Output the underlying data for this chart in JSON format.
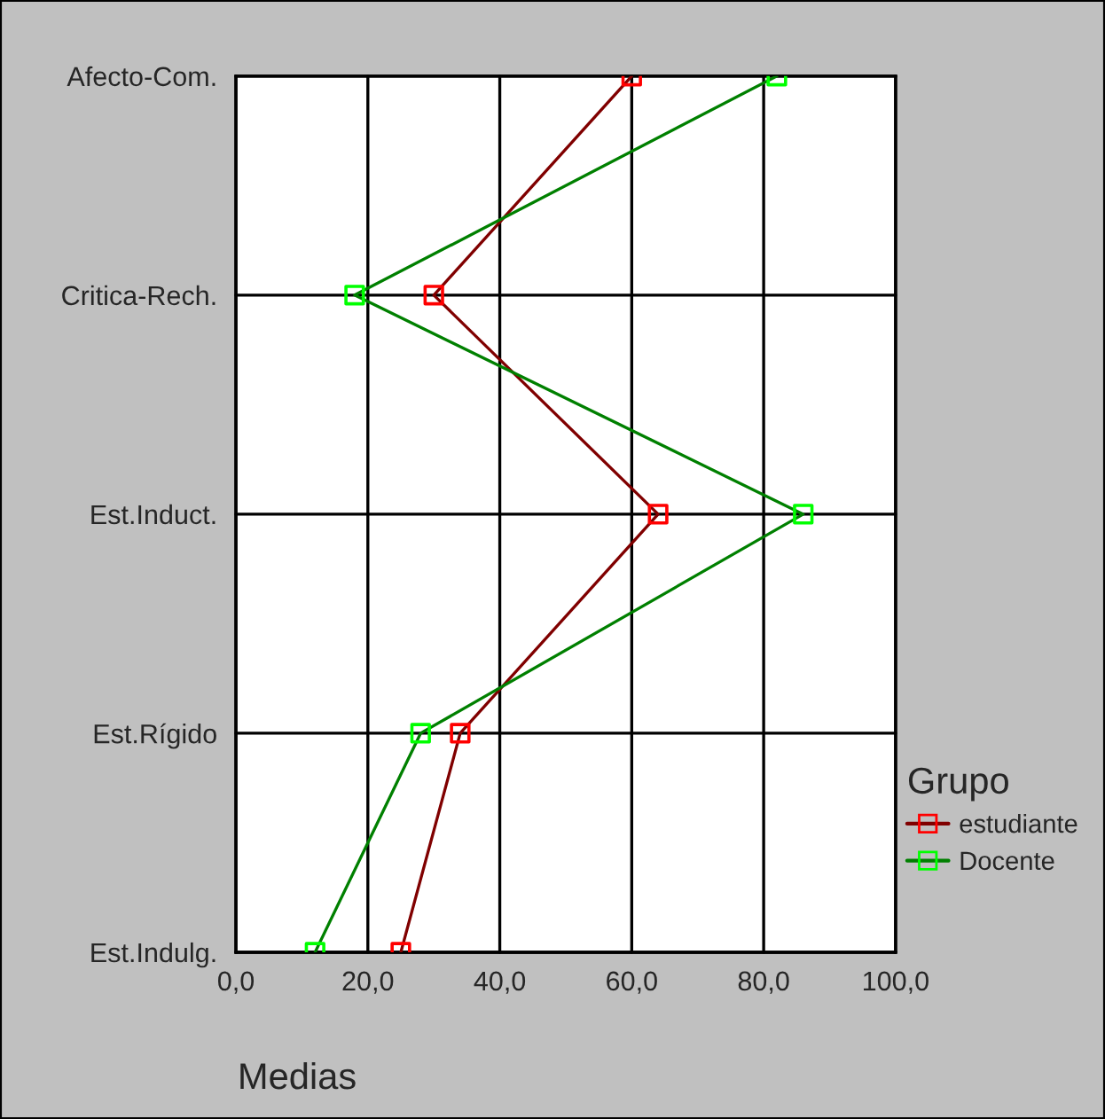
{
  "chart_data": {
    "type": "line",
    "orientation": "horizontal",
    "xlabel": "Medias",
    "legend_title": "Grupo",
    "categories": [
      "Afecto-Com.",
      "Critica-Rech.",
      "Est.Induct.",
      "Est.Rígido",
      "Est.Indulg."
    ],
    "series": [
      {
        "name": "estudiante",
        "color": "#800000",
        "colors": [
          "#ff0000",
          "#ff0000",
          "#ff0000",
          "#ff0000",
          "#ff0000"
        ],
        "values": [
          60,
          30,
          64,
          34,
          25
        ]
      },
      {
        "name": "Docente",
        "color": "#008000",
        "colors": [
          "#00ff00",
          "#00ff00",
          "#00ff00",
          "#00ff00",
          "#00ff00"
        ],
        "values": [
          82,
          18,
          86,
          28,
          12
        ]
      }
    ],
    "xlim": [
      0,
      100
    ],
    "xticks": [
      {
        "value": 0,
        "label": "0,0"
      },
      {
        "value": 20,
        "label": "20,0"
      },
      {
        "value": 40,
        "label": "40,0"
      },
      {
        "value": 60,
        "label": "60,0"
      },
      {
        "value": 80,
        "label": "80,0"
      },
      {
        "value": 100,
        "label": "100,0"
      }
    ],
    "grid": true,
    "legend": "right",
    "marker": "square",
    "line_style": "solid"
  }
}
